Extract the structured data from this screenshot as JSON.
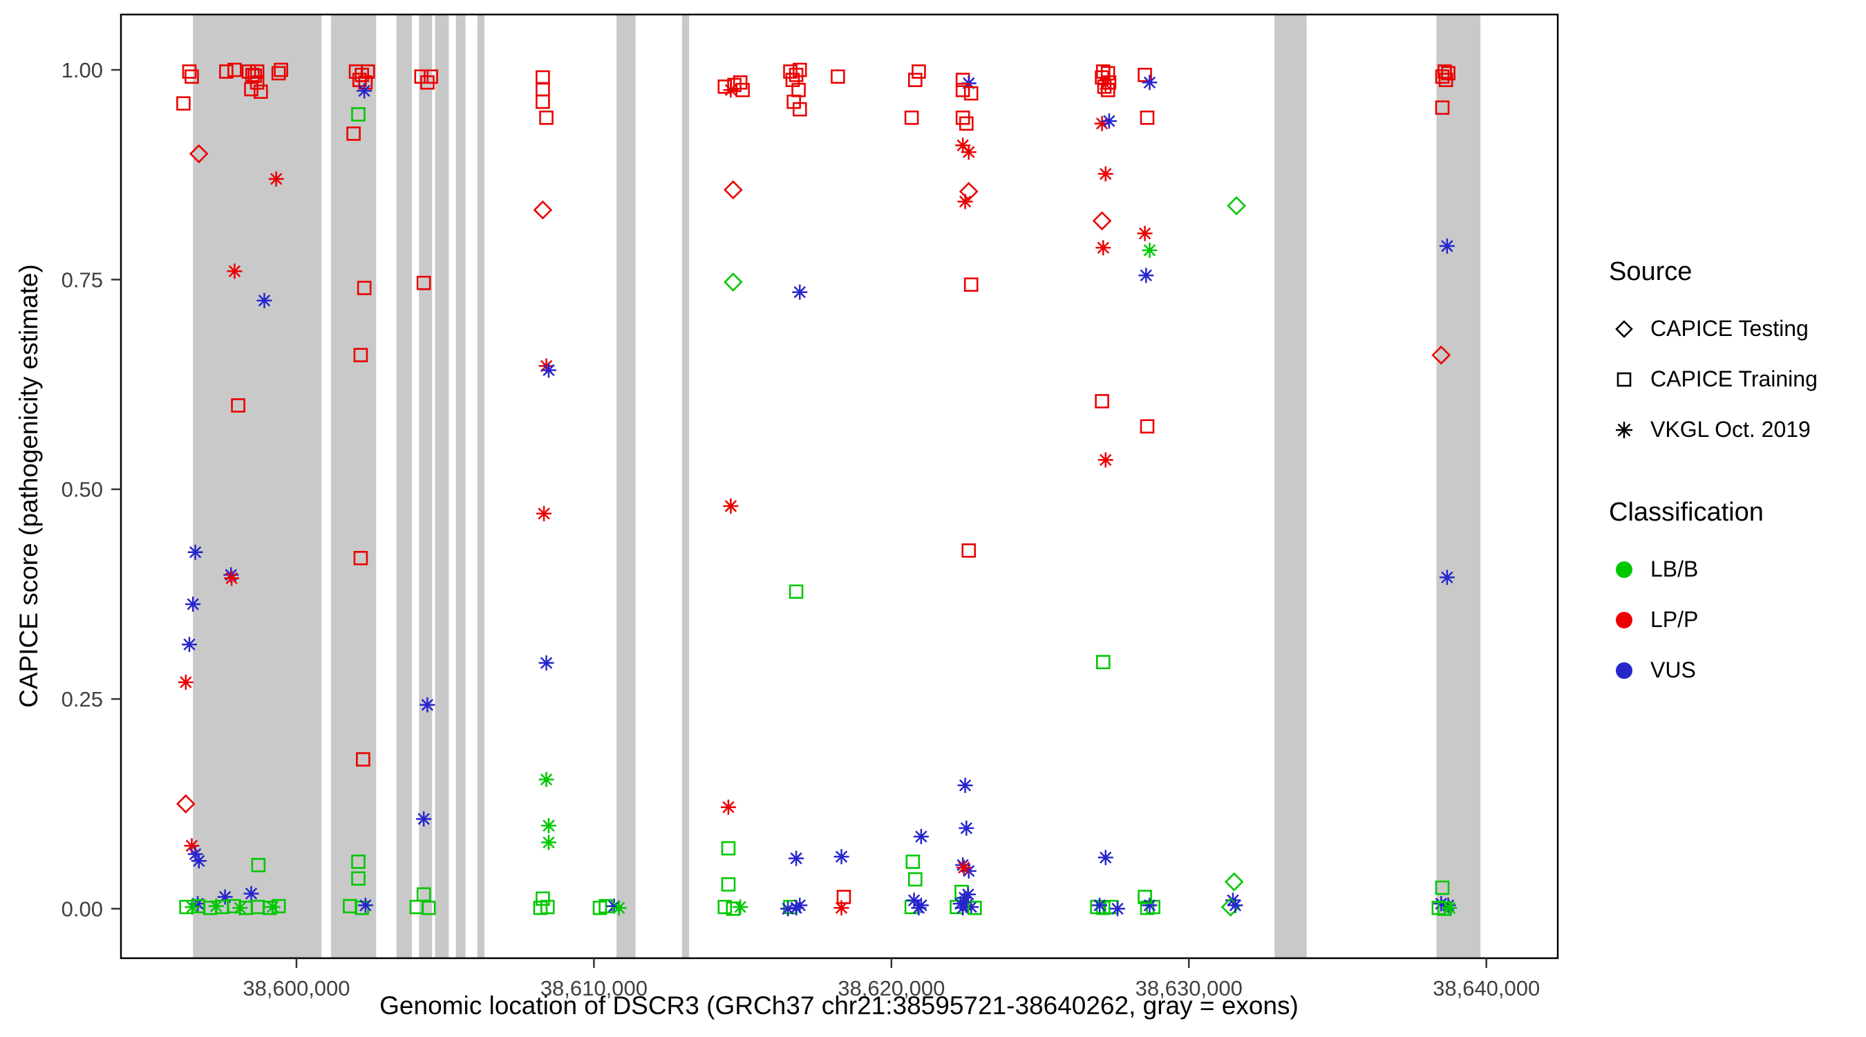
{
  "colors": {
    "exon": "#C9C9C9",
    "panel_border": "#000000",
    "tick_label": "#404040",
    "classes": {
      "B": "#00C800",
      "P": "#EA0000",
      "V": "#2626CC"
    }
  },
  "legend": {
    "source": {
      "title": "Source",
      "items": [
        {
          "label": "CAPICE Testing",
          "shape": "diamond"
        },
        {
          "label": "CAPICE Training",
          "shape": "square"
        },
        {
          "label": "VKGL Oct. 2019",
          "shape": "asterisk"
        }
      ]
    },
    "classification": {
      "title": "Classification",
      "items": [
        {
          "label": "LB/B",
          "color": "#00C800"
        },
        {
          "label": "LP/P",
          "color": "#EA0000"
        },
        {
          "label": "VUS",
          "color": "#2626CC"
        }
      ]
    }
  },
  "chart_data": {
    "type": "scatter",
    "title": "",
    "xlabel": "Genomic location of DSCR3 (GRCh37 chr21:38595721-38640262, gray = exons)",
    "ylabel": "CAPICE score (pathogenicity estimate)",
    "xlim": [
      38594100,
      38642400
    ],
    "ylim": [
      -0.059,
      1.066
    ],
    "grid": false,
    "legend_position": "right",
    "x_ticks": [
      {
        "value": 38600000,
        "label": "38,600,000"
      },
      {
        "value": 38610000,
        "label": "38,610,000"
      },
      {
        "value": 38620000,
        "label": "38,620,000"
      },
      {
        "value": 38630000,
        "label": "38,630,000"
      },
      {
        "value": 38640000,
        "label": "38,640,000"
      }
    ],
    "y_ticks": [
      {
        "value": 0.0,
        "label": "0.00"
      },
      {
        "value": 0.25,
        "label": "0.25"
      },
      {
        "value": 0.5,
        "label": "0.50"
      },
      {
        "value": 0.75,
        "label": "0.75"
      },
      {
        "value": 1.0,
        "label": "1.00"
      }
    ],
    "exons": [
      [
        38596520,
        38600840
      ],
      [
        38601160,
        38602680
      ],
      [
        38603360,
        38603880
      ],
      [
        38604120,
        38604560
      ],
      [
        38604660,
        38605120
      ],
      [
        38605360,
        38605680
      ],
      [
        38606080,
        38606320
      ],
      [
        38610760,
        38611400
      ],
      [
        38612960,
        38613200
      ],
      [
        38632880,
        38633960
      ],
      [
        38638320,
        38639800
      ]
    ],
    "shape_key": {
      "d": "CAPICE Testing (diamond)",
      "s": "CAPICE Training (square)",
      "a": "VKGL Oct. 2019 (asterisk)"
    },
    "class_key": {
      "B": "LB/B",
      "P": "LP/P",
      "V": "VUS"
    },
    "points": [
      [
        38596200,
        0.96,
        "s",
        "P"
      ],
      [
        38596400,
        0.998,
        "s",
        "P"
      ],
      [
        38596480,
        0.992,
        "s",
        "P"
      ],
      [
        38597640,
        0.998,
        "s",
        "P"
      ],
      [
        38597920,
        1.0,
        "s",
        "P"
      ],
      [
        38598400,
        0.998,
        "s",
        "P"
      ],
      [
        38598520,
        0.994,
        "s",
        "P"
      ],
      [
        38598680,
        0.998,
        "s",
        "P"
      ],
      [
        38598600,
        0.993,
        "s",
        "P"
      ],
      [
        38598680,
        0.985,
        "s",
        "P"
      ],
      [
        38598480,
        0.977,
        "s",
        "P"
      ],
      [
        38598800,
        0.974,
        "s",
        "P"
      ],
      [
        38599400,
        0.996,
        "s",
        "P"
      ],
      [
        38599480,
        1.0,
        "s",
        "P"
      ],
      [
        38596720,
        0.9,
        "d",
        "P"
      ],
      [
        38599320,
        0.87,
        "a",
        "P"
      ],
      [
        38597920,
        0.76,
        "a",
        "P"
      ],
      [
        38598920,
        0.725,
        "a",
        "V"
      ],
      [
        38598040,
        0.6,
        "s",
        "P"
      ],
      [
        38596600,
        0.425,
        "a",
        "V"
      ],
      [
        38597800,
        0.398,
        "a",
        "V"
      ],
      [
        38597820,
        0.394,
        "a",
        "P"
      ],
      [
        38596520,
        0.363,
        "a",
        "V"
      ],
      [
        38596400,
        0.315,
        "a",
        "V"
      ],
      [
        38596280,
        0.27,
        "a",
        "P"
      ],
      [
        38596280,
        0.125,
        "d",
        "P"
      ],
      [
        38596480,
        0.075,
        "a",
        "P"
      ],
      [
        38596600,
        0.065,
        "a",
        "V"
      ],
      [
        38596720,
        0.057,
        "a",
        "V"
      ],
      [
        38598720,
        0.052,
        "s",
        "B"
      ],
      [
        38597600,
        0.014,
        "a",
        "V"
      ],
      [
        38598480,
        0.018,
        "a",
        "V"
      ],
      [
        38596680,
        0.006,
        "a",
        "V"
      ],
      [
        38596300,
        0.002,
        "s",
        "B"
      ],
      [
        38596700,
        0.003,
        "s",
        "B"
      ],
      [
        38597100,
        0.001,
        "s",
        "B"
      ],
      [
        38597500,
        0.002,
        "s",
        "B"
      ],
      [
        38597900,
        0.003,
        "s",
        "B"
      ],
      [
        38598300,
        0.001,
        "s",
        "B"
      ],
      [
        38598700,
        0.002,
        "s",
        "B"
      ],
      [
        38599100,
        0.001,
        "s",
        "B"
      ],
      [
        38599400,
        0.003,
        "s",
        "B"
      ],
      [
        38596500,
        0.002,
        "a",
        "B"
      ],
      [
        38597300,
        0.003,
        "a",
        "B"
      ],
      [
        38598100,
        0.001,
        "a",
        "B"
      ],
      [
        38599200,
        0.002,
        "a",
        "B"
      ],
      [
        38602000,
        0.998,
        "s",
        "P"
      ],
      [
        38602200,
        0.994,
        "s",
        "P"
      ],
      [
        38602400,
        0.998,
        "s",
        "P"
      ],
      [
        38602120,
        0.988,
        "s",
        "P"
      ],
      [
        38602320,
        0.985,
        "s",
        "P"
      ],
      [
        38602280,
        0.975,
        "a",
        "V"
      ],
      [
        38602080,
        0.947,
        "s",
        "B"
      ],
      [
        38601920,
        0.924,
        "s",
        "P"
      ],
      [
        38602280,
        0.74,
        "s",
        "P"
      ],
      [
        38602160,
        0.66,
        "s",
        "P"
      ],
      [
        38602160,
        0.418,
        "s",
        "P"
      ],
      [
        38602240,
        0.178,
        "s",
        "P"
      ],
      [
        38602080,
        0.056,
        "s",
        "B"
      ],
      [
        38602080,
        0.036,
        "s",
        "B"
      ],
      [
        38601800,
        0.003,
        "s",
        "B"
      ],
      [
        38602200,
        0.001,
        "s",
        "B"
      ],
      [
        38602320,
        0.004,
        "a",
        "V"
      ],
      [
        38604200,
        0.992,
        "s",
        "P"
      ],
      [
        38604400,
        0.985,
        "s",
        "P"
      ],
      [
        38604520,
        0.992,
        "s",
        "P"
      ],
      [
        38604280,
        0.746,
        "s",
        "P"
      ],
      [
        38604400,
        0.243,
        "a",
        "V"
      ],
      [
        38604280,
        0.107,
        "a",
        "V"
      ],
      [
        38604280,
        0.017,
        "s",
        "B"
      ],
      [
        38604040,
        0.002,
        "s",
        "B"
      ],
      [
        38604440,
        0.001,
        "s",
        "B"
      ],
      [
        38608280,
        0.991,
        "s",
        "P"
      ],
      [
        38608280,
        0.977,
        "s",
        "P"
      ],
      [
        38608280,
        0.962,
        "s",
        "P"
      ],
      [
        38608400,
        0.943,
        "s",
        "P"
      ],
      [
        38608280,
        0.833,
        "d",
        "P"
      ],
      [
        38608400,
        0.647,
        "a",
        "P"
      ],
      [
        38608480,
        0.642,
        "a",
        "V"
      ],
      [
        38608320,
        0.471,
        "a",
        "P"
      ],
      [
        38608400,
        0.293,
        "a",
        "V"
      ],
      [
        38608400,
        0.154,
        "a",
        "B"
      ],
      [
        38608480,
        0.099,
        "a",
        "B"
      ],
      [
        38608480,
        0.079,
        "a",
        "B"
      ],
      [
        38608280,
        0.012,
        "s",
        "B"
      ],
      [
        38608200,
        0.001,
        "s",
        "B"
      ],
      [
        38608440,
        0.002,
        "s",
        "B"
      ],
      [
        38610200,
        0.001,
        "s",
        "B"
      ],
      [
        38610400,
        0.003,
        "s",
        "B"
      ],
      [
        38610680,
        0.003,
        "a",
        "V"
      ],
      [
        38610840,
        0.001,
        "a",
        "B"
      ],
      [
        38614400,
        0.98,
        "s",
        "P"
      ],
      [
        38614600,
        0.976,
        "a",
        "P"
      ],
      [
        38614720,
        0.982,
        "s",
        "P"
      ],
      [
        38614920,
        0.985,
        "s",
        "P"
      ],
      [
        38615000,
        0.976,
        "s",
        "P"
      ],
      [
        38614680,
        0.857,
        "d",
        "P"
      ],
      [
        38614680,
        0.747,
        "d",
        "B"
      ],
      [
        38614600,
        0.48,
        "a",
        "P"
      ],
      [
        38614520,
        0.121,
        "a",
        "P"
      ],
      [
        38614520,
        0.072,
        "s",
        "B"
      ],
      [
        38614520,
        0.029,
        "s",
        "B"
      ],
      [
        38614400,
        0.002,
        "s",
        "B"
      ],
      [
        38614680,
        0.0,
        "s",
        "B"
      ],
      [
        38614920,
        0.002,
        "a",
        "B"
      ],
      [
        38616600,
        0.998,
        "s",
        "P"
      ],
      [
        38616800,
        0.994,
        "s",
        "P"
      ],
      [
        38616920,
        1.0,
        "s",
        "P"
      ],
      [
        38616680,
        0.988,
        "s",
        "P"
      ],
      [
        38616880,
        0.976,
        "s",
        "P"
      ],
      [
        38616720,
        0.962,
        "s",
        "P"
      ],
      [
        38616920,
        0.953,
        "s",
        "P"
      ],
      [
        38618200,
        0.992,
        "s",
        "P"
      ],
      [
        38616920,
        0.735,
        "a",
        "V"
      ],
      [
        38616800,
        0.378,
        "s",
        "B"
      ],
      [
        38616800,
        0.06,
        "a",
        "V"
      ],
      [
        38618320,
        0.062,
        "a",
        "V"
      ],
      [
        38618400,
        0.014,
        "s",
        "P"
      ],
      [
        38618320,
        0.001,
        "a",
        "P"
      ],
      [
        38616600,
        0.002,
        "s",
        "B"
      ],
      [
        38616800,
        0.001,
        "a",
        "V"
      ],
      [
        38616920,
        0.004,
        "a",
        "V"
      ],
      [
        38616520,
        0.0,
        "a",
        "V"
      ],
      [
        38620920,
        0.998,
        "s",
        "P"
      ],
      [
        38620800,
        0.988,
        "s",
        "P"
      ],
      [
        38620680,
        0.943,
        "s",
        "P"
      ],
      [
        38620720,
        0.056,
        "s",
        "B"
      ],
      [
        38620800,
        0.035,
        "s",
        "B"
      ],
      [
        38621000,
        0.086,
        "a",
        "V"
      ],
      [
        38620680,
        0.002,
        "s",
        "B"
      ],
      [
        38620920,
        0.001,
        "a",
        "V"
      ],
      [
        38621000,
        0.004,
        "a",
        "V"
      ],
      [
        38620760,
        0.01,
        "a",
        "V"
      ],
      [
        38622400,
        0.988,
        "s",
        "P"
      ],
      [
        38622600,
        0.984,
        "a",
        "V"
      ],
      [
        38622400,
        0.976,
        "s",
        "P"
      ],
      [
        38622680,
        0.972,
        "s",
        "P"
      ],
      [
        38622400,
        0.943,
        "s",
        "P"
      ],
      [
        38622520,
        0.936,
        "s",
        "P"
      ],
      [
        38622400,
        0.91,
        "a",
        "P"
      ],
      [
        38622600,
        0.902,
        "a",
        "P"
      ],
      [
        38622600,
        0.855,
        "d",
        "P"
      ],
      [
        38622480,
        0.843,
        "a",
        "P"
      ],
      [
        38622680,
        0.744,
        "s",
        "P"
      ],
      [
        38622600,
        0.427,
        "s",
        "P"
      ],
      [
        38622480,
        0.147,
        "a",
        "V"
      ],
      [
        38622520,
        0.096,
        "a",
        "V"
      ],
      [
        38622400,
        0.052,
        "a",
        "V"
      ],
      [
        38622600,
        0.045,
        "a",
        "V"
      ],
      [
        38622440,
        0.049,
        "a",
        "P"
      ],
      [
        38622360,
        0.02,
        "s",
        "B"
      ],
      [
        38622200,
        0.002,
        "s",
        "B"
      ],
      [
        38622400,
        0.001,
        "a",
        "V"
      ],
      [
        38622520,
        0.004,
        "a",
        "V"
      ],
      [
        38622680,
        0.002,
        "a",
        "V"
      ],
      [
        38622320,
        0.006,
        "a",
        "V"
      ],
      [
        38622800,
        0.001,
        "s",
        "B"
      ],
      [
        38622460,
        0.013,
        "a",
        "V"
      ],
      [
        38622580,
        0.017,
        "a",
        "V"
      ],
      [
        38627120,
        0.998,
        "s",
        "P"
      ],
      [
        38627280,
        0.996,
        "s",
        "P"
      ],
      [
        38627080,
        0.991,
        "s",
        "P"
      ],
      [
        38627320,
        0.985,
        "s",
        "P"
      ],
      [
        38627160,
        0.98,
        "s",
        "P"
      ],
      [
        38627200,
        0.983,
        "a",
        "P"
      ],
      [
        38627280,
        0.976,
        "s",
        "P"
      ],
      [
        38627080,
        0.936,
        "a",
        "P"
      ],
      [
        38627320,
        0.939,
        "a",
        "V"
      ],
      [
        38627200,
        0.876,
        "a",
        "P"
      ],
      [
        38628520,
        0.994,
        "s",
        "P"
      ],
      [
        38628680,
        0.985,
        "a",
        "V"
      ],
      [
        38628600,
        0.943,
        "s",
        "P"
      ],
      [
        38627080,
        0.82,
        "d",
        "P"
      ],
      [
        38628520,
        0.805,
        "a",
        "P"
      ],
      [
        38628680,
        0.785,
        "a",
        "B"
      ],
      [
        38627120,
        0.788,
        "a",
        "P"
      ],
      [
        38628560,
        0.755,
        "a",
        "V"
      ],
      [
        38627080,
        0.605,
        "s",
        "P"
      ],
      [
        38628600,
        0.575,
        "s",
        "P"
      ],
      [
        38627200,
        0.535,
        "a",
        "P"
      ],
      [
        38627120,
        0.294,
        "s",
        "B"
      ],
      [
        38627200,
        0.061,
        "a",
        "V"
      ],
      [
        38626920,
        0.002,
        "s",
        "B"
      ],
      [
        38627120,
        0.001,
        "s",
        "B"
      ],
      [
        38627400,
        0.002,
        "s",
        "B"
      ],
      [
        38627600,
        0.0,
        "a",
        "V"
      ],
      [
        38628600,
        0.001,
        "s",
        "B"
      ],
      [
        38628800,
        0.002,
        "s",
        "B"
      ],
      [
        38628680,
        0.004,
        "a",
        "V"
      ],
      [
        38628520,
        0.014,
        "s",
        "B"
      ],
      [
        38627000,
        0.004,
        "a",
        "V"
      ],
      [
        38631600,
        0.838,
        "d",
        "B"
      ],
      [
        38631520,
        0.032,
        "d",
        "B"
      ],
      [
        38631480,
        0.01,
        "a",
        "V"
      ],
      [
        38631400,
        0.002,
        "d",
        "B"
      ],
      [
        38631560,
        0.004,
        "a",
        "V"
      ],
      [
        38638600,
        0.998,
        "s",
        "P"
      ],
      [
        38638720,
        0.996,
        "s",
        "P"
      ],
      [
        38638520,
        0.992,
        "s",
        "P"
      ],
      [
        38638640,
        0.988,
        "s",
        "P"
      ],
      [
        38638520,
        0.955,
        "s",
        "P"
      ],
      [
        38638680,
        0.79,
        "a",
        "V"
      ],
      [
        38638480,
        0.66,
        "d",
        "P"
      ],
      [
        38638680,
        0.395,
        "a",
        "V"
      ],
      [
        38638520,
        0.025,
        "s",
        "B"
      ],
      [
        38638480,
        0.006,
        "a",
        "V"
      ],
      [
        38638720,
        0.004,
        "a",
        "V"
      ],
      [
        38638400,
        0.001,
        "s",
        "B"
      ],
      [
        38638600,
        0.0,
        "s",
        "B"
      ],
      [
        38638760,
        0.001,
        "a",
        "B"
      ]
    ]
  }
}
